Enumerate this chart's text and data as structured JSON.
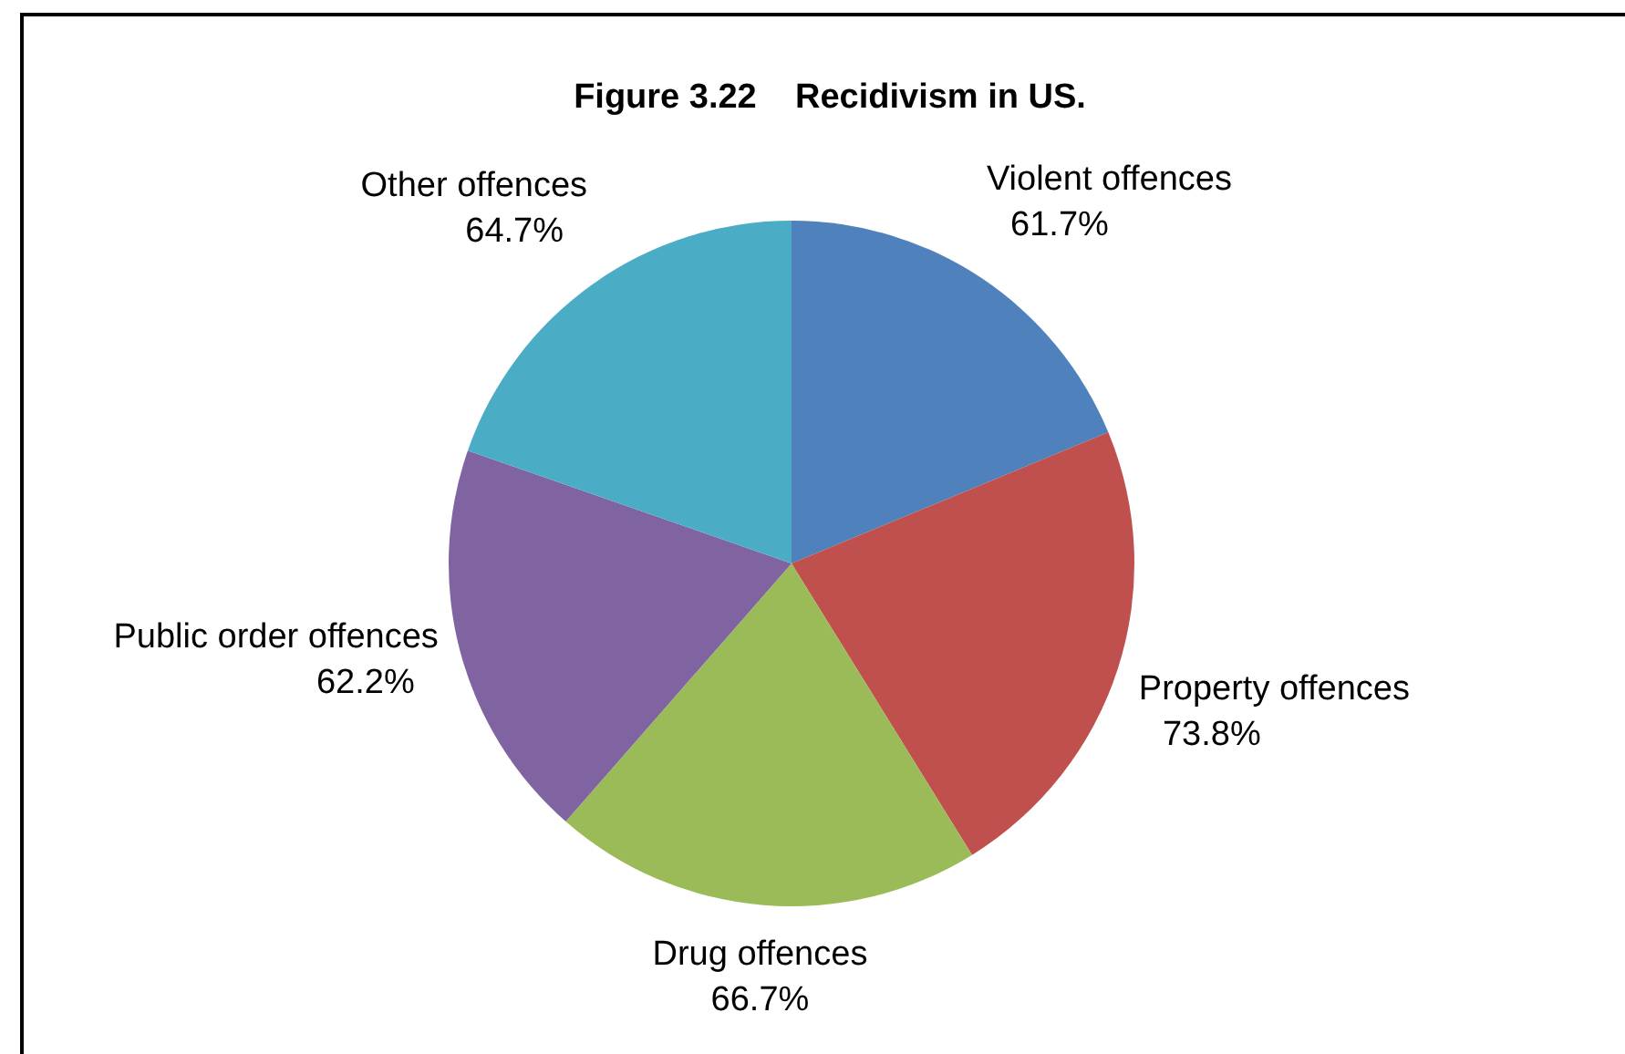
{
  "chart_data": {
    "type": "pie",
    "title": "Figure 3.22    Recidivism in US.",
    "categories": [
      "Violent offences",
      "Property offences",
      "Drug offences",
      "Public order offences",
      "Other offences"
    ],
    "values": [
      61.7,
      73.8,
      66.7,
      62.2,
      64.7
    ],
    "value_labels": [
      "61.7%",
      "73.8%",
      "66.7%",
      "62.2%",
      "64.7%"
    ],
    "colors": [
      "#4f81bd",
      "#c0504d",
      "#9bbb59",
      "#8064a2",
      "#4bacc6"
    ]
  }
}
